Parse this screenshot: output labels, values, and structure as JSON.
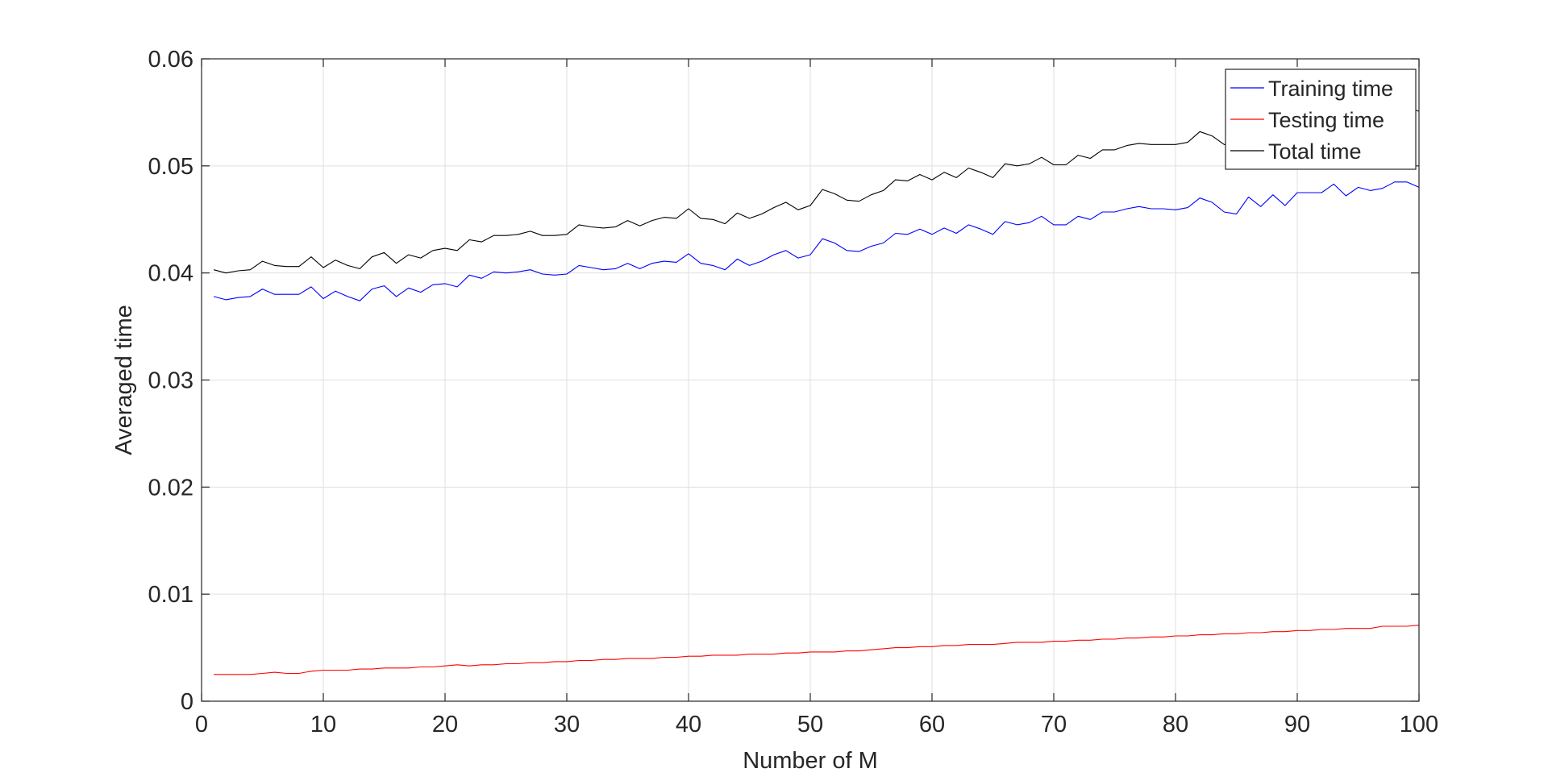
{
  "chart_data": {
    "type": "line",
    "xlabel": "Number of M",
    "ylabel": "Averaged time",
    "xlim": [
      0,
      100
    ],
    "ylim": [
      0,
      0.06
    ],
    "xticks": [
      0,
      10,
      20,
      30,
      40,
      50,
      60,
      70,
      80,
      90,
      100
    ],
    "yticks": [
      0,
      0.01,
      0.02,
      0.03,
      0.04,
      0.05,
      0.06
    ],
    "xtick_labels": [
      "0",
      "10",
      "20",
      "30",
      "40",
      "50",
      "60",
      "70",
      "80",
      "90",
      "100"
    ],
    "ytick_labels": [
      "0",
      "0.01",
      "0.02",
      "0.03",
      "0.04",
      "0.05",
      "0.06"
    ],
    "grid": true,
    "legend_position": "top-right",
    "x": [
      1,
      2,
      3,
      4,
      5,
      6,
      7,
      8,
      9,
      10,
      11,
      12,
      13,
      14,
      15,
      16,
      17,
      18,
      19,
      20,
      21,
      22,
      23,
      24,
      25,
      26,
      27,
      28,
      29,
      30,
      31,
      32,
      33,
      34,
      35,
      36,
      37,
      38,
      39,
      40,
      41,
      42,
      43,
      44,
      45,
      46,
      47,
      48,
      49,
      50,
      51,
      52,
      53,
      54,
      55,
      56,
      57,
      58,
      59,
      60,
      61,
      62,
      63,
      64,
      65,
      66,
      67,
      68,
      69,
      70,
      71,
      72,
      73,
      74,
      75,
      76,
      77,
      78,
      79,
      80,
      81,
      82,
      83,
      84,
      85,
      86,
      87,
      88,
      89,
      90,
      91,
      92,
      93,
      94,
      95,
      96,
      97,
      98,
      99,
      100
    ],
    "series": [
      {
        "name": "Training time",
        "color": "#0000ff",
        "values": [
          0.0378,
          0.0375,
          0.0377,
          0.0378,
          0.0385,
          0.038,
          0.038,
          0.038,
          0.0387,
          0.0376,
          0.0383,
          0.0378,
          0.0374,
          0.0385,
          0.0388,
          0.0378,
          0.0386,
          0.0382,
          0.0389,
          0.039,
          0.0387,
          0.0398,
          0.0395,
          0.0401,
          0.04,
          0.0401,
          0.0403,
          0.0399,
          0.0398,
          0.0399,
          0.0407,
          0.0405,
          0.0403,
          0.0404,
          0.0409,
          0.0404,
          0.0409,
          0.0411,
          0.041,
          0.0418,
          0.0409,
          0.0407,
          0.0403,
          0.0413,
          0.0407,
          0.0411,
          0.0417,
          0.0421,
          0.0414,
          0.0417,
          0.0432,
          0.0428,
          0.0421,
          0.042,
          0.0425,
          0.0428,
          0.0437,
          0.0436,
          0.0441,
          0.0436,
          0.0442,
          0.0437,
          0.0445,
          0.0441,
          0.0436,
          0.0448,
          0.0445,
          0.0447,
          0.0453,
          0.0445,
          0.0445,
          0.0453,
          0.045,
          0.0457,
          0.0457,
          0.046,
          0.0462,
          0.046,
          0.046,
          0.0459,
          0.0461,
          0.047,
          0.0466,
          0.0457,
          0.0455,
          0.0471,
          0.0462,
          0.0473,
          0.0463,
          0.0475,
          0.0475,
          0.0475,
          0.0483,
          0.0472,
          0.048,
          0.0477,
          0.0479,
          0.0485,
          0.0485,
          0.048
        ]
      },
      {
        "name": "Testing time",
        "color": "#ff0000",
        "values": [
          0.0025,
          0.0025,
          0.0025,
          0.0025,
          0.0026,
          0.0027,
          0.0026,
          0.0026,
          0.0028,
          0.0029,
          0.0029,
          0.0029,
          0.003,
          0.003,
          0.0031,
          0.0031,
          0.0031,
          0.0032,
          0.0032,
          0.0033,
          0.0034,
          0.0033,
          0.0034,
          0.0034,
          0.0035,
          0.0035,
          0.0036,
          0.0036,
          0.0037,
          0.0037,
          0.0038,
          0.0038,
          0.0039,
          0.0039,
          0.004,
          0.004,
          0.004,
          0.0041,
          0.0041,
          0.0042,
          0.0042,
          0.0043,
          0.0043,
          0.0043,
          0.0044,
          0.0044,
          0.0044,
          0.0045,
          0.0045,
          0.0046,
          0.0046,
          0.0046,
          0.0047,
          0.0047,
          0.0048,
          0.0049,
          0.005,
          0.005,
          0.0051,
          0.0051,
          0.0052,
          0.0052,
          0.0053,
          0.0053,
          0.0053,
          0.0054,
          0.0055,
          0.0055,
          0.0055,
          0.0056,
          0.0056,
          0.0057,
          0.0057,
          0.0058,
          0.0058,
          0.0059,
          0.0059,
          0.006,
          0.006,
          0.0061,
          0.0061,
          0.0062,
          0.0062,
          0.0063,
          0.0063,
          0.0064,
          0.0064,
          0.0065,
          0.0065,
          0.0066,
          0.0066,
          0.0067,
          0.0067,
          0.0068,
          0.0068,
          0.0068,
          0.007,
          0.007,
          0.007,
          0.0071
        ]
      },
      {
        "name": "Total time",
        "color": "#000000",
        "values": [
          0.0403,
          0.04,
          0.0402,
          0.0403,
          0.0411,
          0.0407,
          0.0406,
          0.0406,
          0.0415,
          0.0405,
          0.0412,
          0.0407,
          0.0404,
          0.0415,
          0.0419,
          0.0409,
          0.0417,
          0.0414,
          0.0421,
          0.0423,
          0.0421,
          0.0431,
          0.0429,
          0.0435,
          0.0435,
          0.0436,
          0.0439,
          0.0435,
          0.0435,
          0.0436,
          0.0445,
          0.0443,
          0.0442,
          0.0443,
          0.0449,
          0.0444,
          0.0449,
          0.0452,
          0.0451,
          0.046,
          0.0451,
          0.045,
          0.0446,
          0.0456,
          0.0451,
          0.0455,
          0.0461,
          0.0466,
          0.0459,
          0.0463,
          0.0478,
          0.0474,
          0.0468,
          0.0467,
          0.0473,
          0.0477,
          0.0487,
          0.0486,
          0.0492,
          0.0487,
          0.0494,
          0.0489,
          0.0498,
          0.0494,
          0.0489,
          0.0502,
          0.05,
          0.0502,
          0.0508,
          0.0501,
          0.0501,
          0.051,
          0.0507,
          0.0515,
          0.0515,
          0.0519,
          0.0521,
          0.052,
          0.052,
          0.052,
          0.0522,
          0.0532,
          0.0528,
          0.052,
          0.0518,
          0.0535,
          0.0526,
          0.0538,
          0.0528,
          0.0541,
          0.0541,
          0.0542,
          0.0551,
          0.054,
          0.0548,
          0.0545,
          0.0549,
          0.0555,
          0.0555,
          0.0551
        ]
      }
    ]
  }
}
